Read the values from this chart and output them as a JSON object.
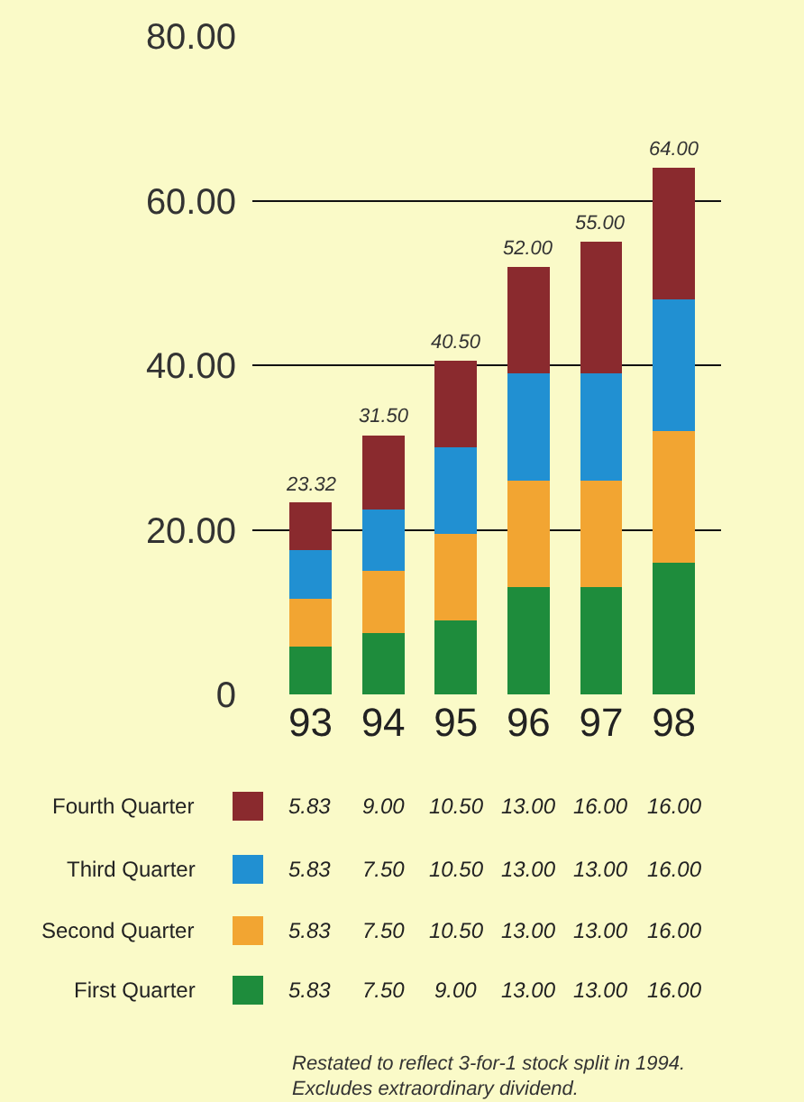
{
  "chart_data": {
    "type": "bar",
    "stacked": true,
    "categories": [
      "93",
      "94",
      "95",
      "96",
      "97",
      "98"
    ],
    "series": [
      {
        "name": "First Quarter",
        "color": "#1e8c3c",
        "values": [
          5.83,
          7.5,
          9.0,
          13.0,
          13.0,
          16.0
        ],
        "value_labels": [
          "5.83",
          "7.50",
          "9.00",
          "13.00",
          "13.00",
          "16.00"
        ]
      },
      {
        "name": "Second Quarter",
        "color": "#f2a532",
        "values": [
          5.83,
          7.5,
          10.5,
          13.0,
          13.0,
          16.0
        ],
        "value_labels": [
          "5.83",
          "7.50",
          "10.50",
          "13.00",
          "13.00",
          "16.00"
        ]
      },
      {
        "name": "Third Quarter",
        "color": "#2190d2",
        "values": [
          5.83,
          7.5,
          10.5,
          13.0,
          13.0,
          16.0
        ],
        "value_labels": [
          "5.83",
          "7.50",
          "10.50",
          "13.00",
          "13.00",
          "16.00"
        ]
      },
      {
        "name": "Fourth Quarter",
        "color": "#8a2a2e",
        "values": [
          5.83,
          9.0,
          10.5,
          13.0,
          16.0,
          16.0
        ],
        "value_labels": [
          "5.83",
          "9.00",
          "10.50",
          "13.00",
          "16.00",
          "16.00"
        ]
      }
    ],
    "totals": [
      "23.32",
      "31.50",
      "40.50",
      "52.00",
      "55.00",
      "64.00"
    ],
    "ylim": [
      0,
      80
    ],
    "yticks": [
      0,
      {
        "value": 20,
        "label": "20.00"
      },
      {
        "value": 40,
        "label": "40.00"
      },
      {
        "value": 60,
        "label": "60.00"
      },
      {
        "value": 80,
        "label": "80.00"
      }
    ],
    "grid": "y",
    "legend": "bottom",
    "annotations": [
      "Restated to reflect 3-for-1 stock split in 1994.",
      "Excludes extraordinary dividend."
    ]
  }
}
